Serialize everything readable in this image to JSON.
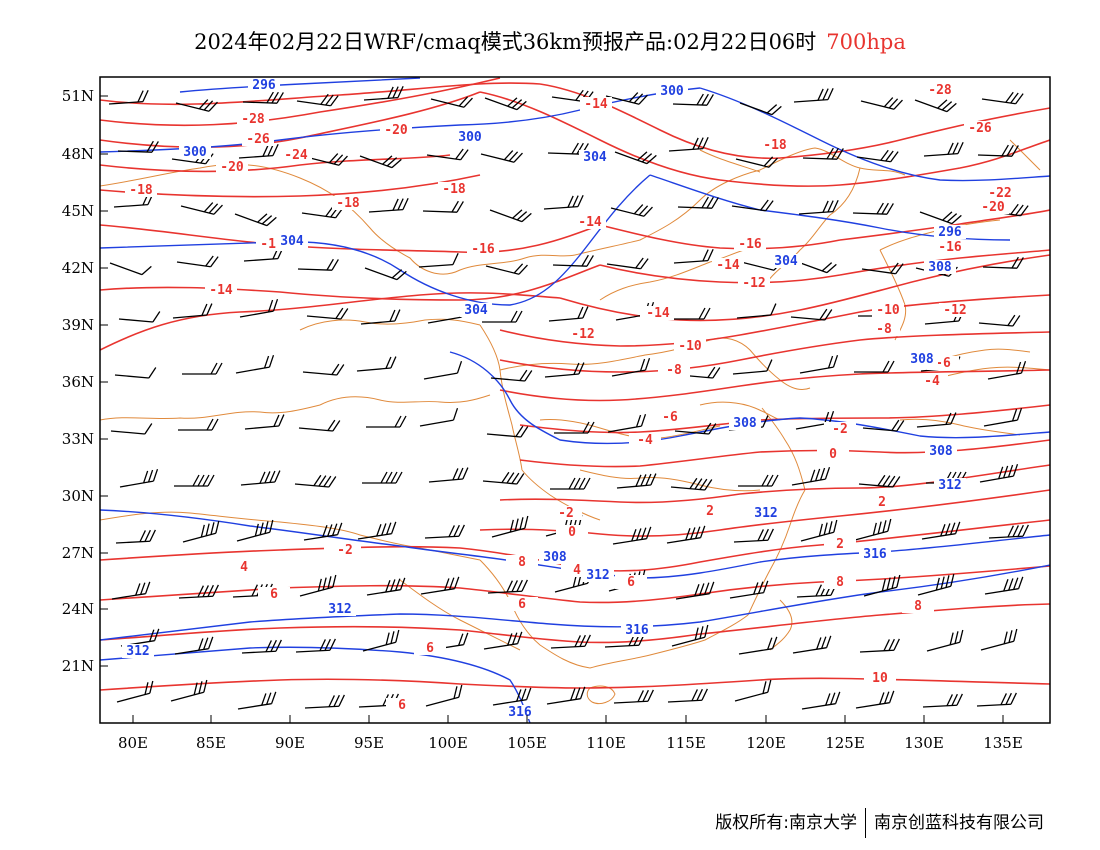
{
  "header": {
    "title": "2024年02月22日WRF/cmaq模式36km预报产品:02月22日06时",
    "level": "700hpa"
  },
  "footer": {
    "owner": "版权所有:南京大学",
    "partner": "南京创蓝科技有限公司"
  },
  "colors": {
    "temperature": "#e8342f",
    "height": "#2040e0",
    "border": "#e08a3c",
    "wind": "#000000"
  },
  "axes": {
    "lon_ticks": [
      "80E",
      "85E",
      "90E",
      "95E",
      "100E",
      "105E",
      "110E",
      "115E",
      "120E",
      "125E",
      "130E",
      "135E"
    ],
    "lat_ticks": [
      "51N",
      "48N",
      "45N",
      "42N",
      "39N",
      "36N",
      "33N",
      "30N",
      "27N",
      "24N",
      "21N"
    ]
  },
  "temperature_labels": [
    "-14",
    "-28",
    "-26",
    "-20",
    "-24",
    "-20",
    "-18",
    "-18",
    "-18",
    "-16",
    "-14",
    "-16",
    "-14",
    "-16",
    "-14",
    "-12",
    "-14",
    "-12",
    "-10",
    "-8",
    "-6",
    "-4",
    "-2",
    "-2",
    "0",
    "0",
    "2",
    "2",
    "-2",
    "2",
    "4",
    "6",
    "6",
    "6",
    "8",
    "8",
    "6",
    "8",
    "10",
    "-28",
    "-26",
    "-22",
    "-20",
    "-18",
    "-16",
    "-14",
    "-12",
    "-10",
    "-8",
    "-6",
    "-4",
    "-2",
    "4",
    "6"
  ],
  "height_labels": [
    "296",
    "300",
    "300",
    "300",
    "304",
    "304",
    "304",
    "304",
    "308",
    "308",
    "308",
    "312",
    "312",
    "312",
    "312",
    "316",
    "316",
    "316",
    "296",
    "308",
    "308",
    "312"
  ]
}
